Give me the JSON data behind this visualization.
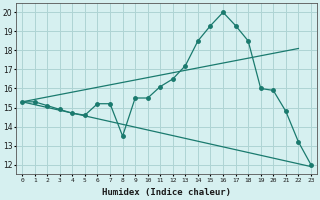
{
  "xlabel": "Humidex (Indice chaleur)",
  "ylabel": "",
  "xlim": [
    -0.5,
    23.5
  ],
  "ylim": [
    11.5,
    20.5
  ],
  "xticks": [
    0,
    1,
    2,
    3,
    4,
    5,
    6,
    7,
    8,
    9,
    10,
    11,
    12,
    13,
    14,
    15,
    16,
    17,
    18,
    19,
    20,
    21,
    22,
    23
  ],
  "yticks": [
    12,
    13,
    14,
    15,
    16,
    17,
    18,
    19,
    20
  ],
  "bg_color": "#d6f0f0",
  "grid_color": "#aed4d4",
  "line_color": "#1a7a6e",
  "line1_x": [
    0,
    1,
    2,
    3,
    4,
    5,
    6,
    7,
    8,
    9,
    10,
    11,
    12,
    13,
    14,
    15,
    16,
    17,
    18,
    19,
    20,
    21,
    22,
    23
  ],
  "line1_y": [
    15.3,
    15.3,
    15.1,
    14.9,
    14.7,
    14.6,
    15.2,
    15.2,
    13.5,
    15.5,
    15.5,
    16.1,
    16.5,
    17.2,
    18.5,
    19.3,
    20.0,
    19.3,
    18.5,
    16.0,
    15.9,
    14.8,
    13.2,
    12.0
  ],
  "line2_x": [
    0,
    22
  ],
  "line2_y": [
    15.3,
    18.1
  ],
  "line3_x": [
    0,
    23
  ],
  "line3_y": [
    15.3,
    11.9
  ]
}
